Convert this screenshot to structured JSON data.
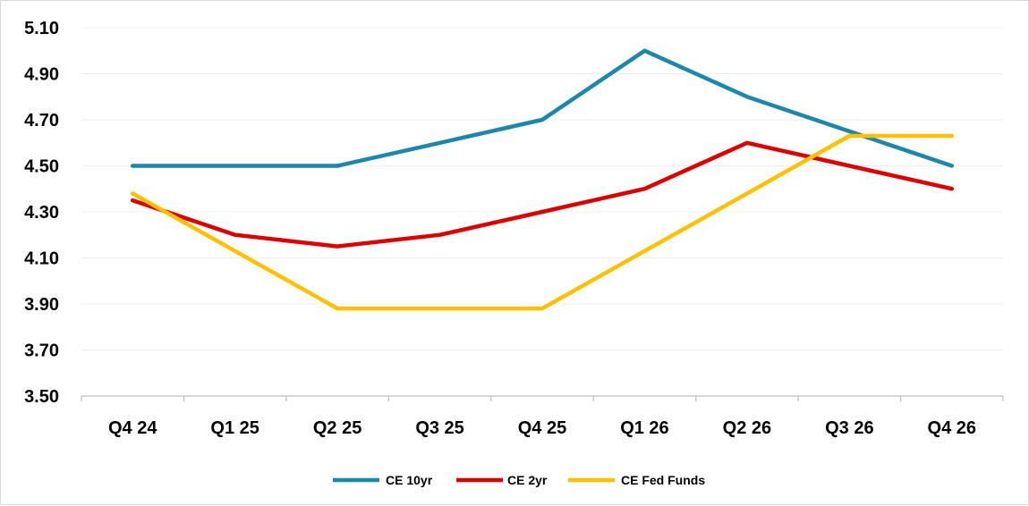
{
  "chart_data": {
    "type": "line",
    "categories": [
      "Q4 24",
      "Q1 25",
      "Q2 25",
      "Q3 25",
      "Q4 25",
      "Q1 26",
      "Q2 26",
      "Q3 26",
      "Q4 26"
    ],
    "series": [
      {
        "name": "CE 10yr",
        "color": "#1a87ad",
        "values": [
          4.5,
          4.5,
          4.5,
          4.6,
          4.7,
          5.0,
          4.8,
          4.65,
          4.5
        ]
      },
      {
        "name": "CE 2yr",
        "color": "#e00000",
        "values": [
          4.35,
          4.2,
          4.15,
          4.2,
          4.3,
          4.4,
          4.6,
          4.5,
          4.4
        ]
      },
      {
        "name": "CE Fed Funds",
        "color": "#ffc000",
        "values": [
          4.38,
          4.13,
          3.88,
          3.88,
          3.88,
          4.13,
          4.38,
          4.63,
          4.63
        ]
      }
    ],
    "y_ticks": [
      "3.50",
      "3.70",
      "3.90",
      "4.10",
      "4.30",
      "4.50",
      "4.70",
      "4.90",
      "5.10"
    ],
    "ylim": [
      3.5,
      5.1
    ],
    "grid": true,
    "legend_position": "bottom",
    "title": "",
    "xlabel": "",
    "ylabel": ""
  }
}
